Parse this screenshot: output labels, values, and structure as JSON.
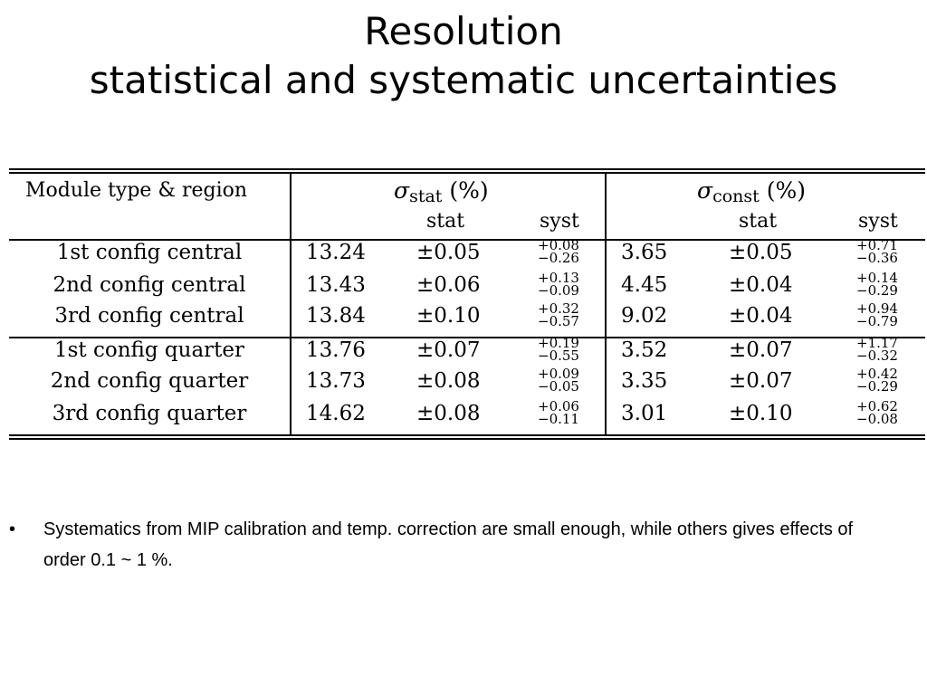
{
  "slide": {
    "title_line1": "Resolution",
    "title_line2": "statistical and systematic uncertainties"
  },
  "table": {
    "header": {
      "module": "Module type & region",
      "stat_group_symbol": "σ",
      "stat_group_sub": "stat",
      "stat_group_unit": "(%)",
      "const_group_symbol": "σ",
      "const_group_sub": "const",
      "const_group_unit": "(%)",
      "sub_stat": "stat",
      "sub_syst": "syst"
    },
    "rows": [
      {
        "label": "1st config central",
        "s_val": "13.24",
        "s_stat": "±0.05",
        "s_up": "+0.08",
        "s_dn": "−0.26",
        "c_val": "3.65",
        "c_stat": "±0.05",
        "c_up": "+0.71",
        "c_dn": "−0.36"
      },
      {
        "label": "2nd config central",
        "s_val": "13.43",
        "s_stat": "±0.06",
        "s_up": "+0.13",
        "s_dn": "−0.09",
        "c_val": "4.45",
        "c_stat": "±0.04",
        "c_up": "+0.14",
        "c_dn": "−0.29"
      },
      {
        "label": "3rd config central",
        "s_val": "13.84",
        "s_stat": "±0.10",
        "s_up": "+0.32",
        "s_dn": "−0.57",
        "c_val": "9.02",
        "c_stat": "±0.04",
        "c_up": "+0.94",
        "c_dn": "−0.79"
      },
      {
        "label": "1st config quarter",
        "s_val": "13.76",
        "s_stat": "±0.07",
        "s_up": "+0.19",
        "s_dn": "−0.55",
        "c_val": "3.52",
        "c_stat": "±0.07",
        "c_up": "+1.17",
        "c_dn": "−0.32"
      },
      {
        "label": "2nd config quarter",
        "s_val": "13.73",
        "s_stat": "±0.08",
        "s_up": "+0.09",
        "s_dn": "−0.05",
        "c_val": "3.35",
        "c_stat": "±0.07",
        "c_up": "+0.42",
        "c_dn": "−0.29"
      },
      {
        "label": "3rd config quarter",
        "s_val": "14.62",
        "s_stat": "±0.08",
        "s_up": "+0.06",
        "s_dn": "−0.11",
        "c_val": "3.01",
        "c_stat": "±0.10",
        "c_up": "+0.62",
        "c_dn": "−0.08"
      }
    ]
  },
  "bullets": [
    {
      "marker": "•",
      "text": "Systematics from MIP calibration and temp. correction are small enough, while others gives effects of order 0.1 ~ 1 %."
    }
  ]
}
